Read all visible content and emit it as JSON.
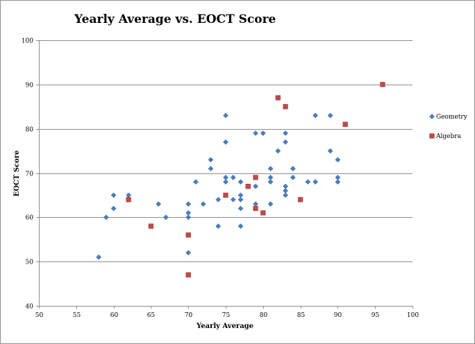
{
  "chart_data": {
    "type": "scatter",
    "title": "Yearly Average vs. EOCT Score",
    "xlabel": "Yearly Average",
    "ylabel": "EOCT Score",
    "xlim": [
      50,
      100
    ],
    "ylim": [
      40,
      100
    ],
    "x_ticks": [
      "50",
      "55",
      "60",
      "65",
      "70",
      "75",
      "80",
      "85",
      "90",
      "95",
      "100"
    ],
    "y_ticks": [
      "40",
      "50",
      "60",
      "70",
      "80",
      "90",
      "100"
    ],
    "grid": "horizontal",
    "legend_position": "right",
    "series": [
      {
        "name": "Geometry",
        "marker": "diamond",
        "color": "#4a7ebb",
        "points": [
          [
            58,
            51
          ],
          [
            59,
            60
          ],
          [
            60,
            65
          ],
          [
            60,
            62
          ],
          [
            62,
            65
          ],
          [
            66,
            63
          ],
          [
            67,
            60
          ],
          [
            70,
            63
          ],
          [
            70,
            61
          ],
          [
            70,
            60
          ],
          [
            70,
            52
          ],
          [
            71,
            68
          ],
          [
            72,
            63
          ],
          [
            73,
            73
          ],
          [
            73,
            71
          ],
          [
            74,
            64
          ],
          [
            74,
            58
          ],
          [
            75,
            83
          ],
          [
            75,
            77
          ],
          [
            75,
            69
          ],
          [
            75,
            68
          ],
          [
            76,
            69
          ],
          [
            76,
            64
          ],
          [
            77,
            68
          ],
          [
            77,
            65
          ],
          [
            77,
            64
          ],
          [
            77,
            62
          ],
          [
            77,
            58
          ],
          [
            79,
            79
          ],
          [
            79,
            67
          ],
          [
            79,
            63
          ],
          [
            80,
            79
          ],
          [
            81,
            71
          ],
          [
            81,
            69
          ],
          [
            81,
            68
          ],
          [
            81,
            63
          ],
          [
            82,
            75
          ],
          [
            83,
            79
          ],
          [
            83,
            77
          ],
          [
            83,
            67
          ],
          [
            83,
            66
          ],
          [
            83,
            65
          ],
          [
            84,
            71
          ],
          [
            84,
            69
          ],
          [
            86,
            68
          ],
          [
            87,
            83
          ],
          [
            87,
            68
          ],
          [
            89,
            83
          ],
          [
            89,
            75
          ],
          [
            90,
            73
          ],
          [
            90,
            69
          ],
          [
            90,
            68
          ]
        ]
      },
      {
        "name": "Algebra",
        "marker": "square",
        "color": "#be4b48",
        "points": [
          [
            62,
            64
          ],
          [
            65,
            58
          ],
          [
            70,
            56
          ],
          [
            70,
            47
          ],
          [
            75,
            65
          ],
          [
            78,
            67
          ],
          [
            79,
            69
          ],
          [
            79,
            62
          ],
          [
            80,
            61
          ],
          [
            82,
            87
          ],
          [
            83,
            85
          ],
          [
            85,
            64
          ],
          [
            91,
            81
          ],
          [
            96,
            90
          ]
        ]
      }
    ]
  }
}
